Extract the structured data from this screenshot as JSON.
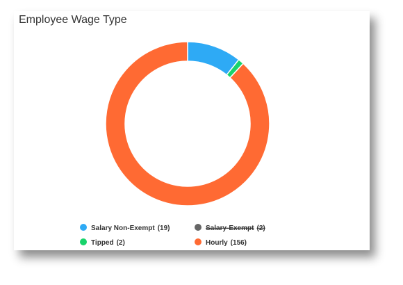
{
  "chart_data": {
    "type": "donut",
    "title": "Employee Wage Type",
    "categories": [
      "Salary Non-Exempt",
      "Salary-Exempt",
      "Tipped",
      "Hourly"
    ],
    "values": [
      19,
      2,
      2,
      156
    ],
    "value_labels": [
      "(19)",
      "(2)",
      "(2)",
      "(156)"
    ],
    "colors": [
      "#2eaaf5",
      "#666666",
      "#18d36b",
      "#ff6a33"
    ],
    "hidden": [
      false,
      true,
      false,
      false
    ]
  }
}
